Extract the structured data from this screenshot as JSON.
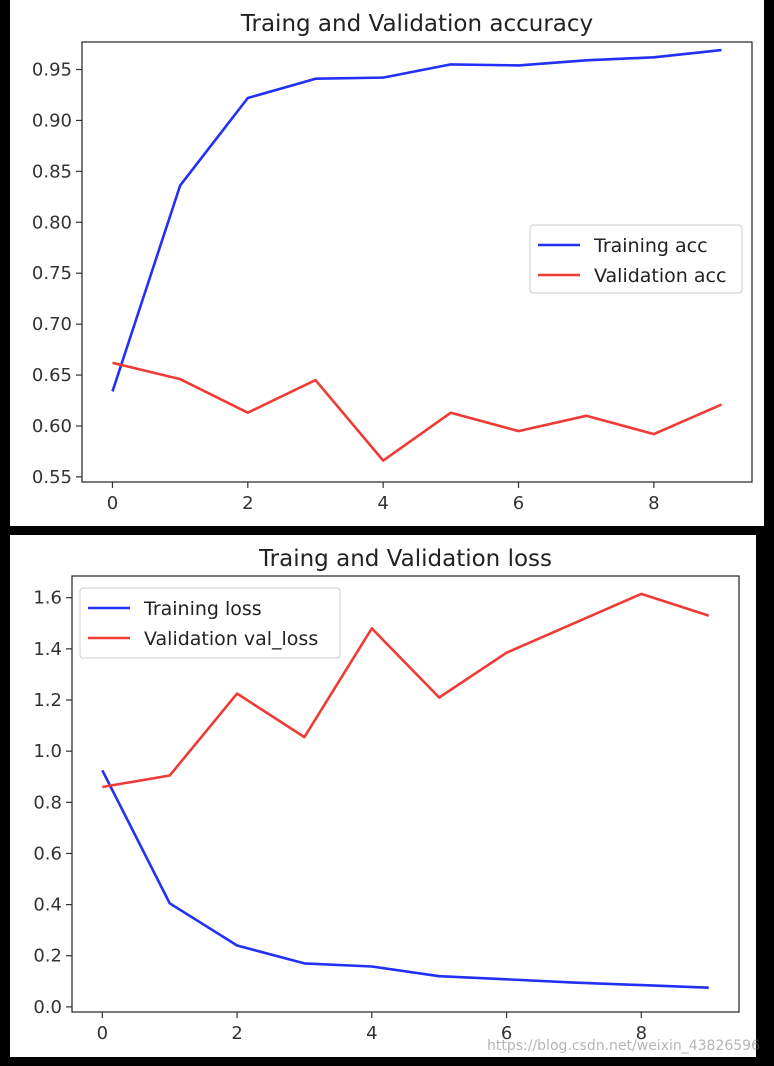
{
  "chart_data": [
    {
      "type": "line",
      "title": "Traing and Validation accuracy",
      "xlabel": "",
      "ylabel": "",
      "x": [
        0,
        1,
        2,
        3,
        4,
        5,
        6,
        7,
        8,
        9
      ],
      "xlim": [
        -0.45,
        9.45
      ],
      "ylim": [
        0.545,
        0.977
      ],
      "xticks": [
        "0",
        "2",
        "4",
        "6",
        "8"
      ],
      "yticks": [
        "0.55",
        "0.60",
        "0.65",
        "0.70",
        "0.75",
        "0.80",
        "0.85",
        "0.90",
        "0.95"
      ],
      "legend_position": "center-right",
      "grid": false,
      "series": [
        {
          "name": "Training acc",
          "color": "#2330f5",
          "values": [
            0.634,
            0.836,
            0.922,
            0.941,
            0.942,
            0.955,
            0.954,
            0.959,
            0.962,
            0.969
          ]
        },
        {
          "name": "Validation acc",
          "color": "#ef3b36",
          "values": [
            0.662,
            0.646,
            0.613,
            0.645,
            0.566,
            0.613,
            0.595,
            0.61,
            0.592,
            0.621
          ]
        }
      ]
    },
    {
      "type": "line",
      "title": "Traing and Validation loss",
      "xlabel": "",
      "ylabel": "",
      "x": [
        0,
        1,
        2,
        3,
        4,
        5,
        6,
        7,
        8,
        9
      ],
      "xlim": [
        -0.45,
        9.45
      ],
      "ylim": [
        -0.02,
        1.685
      ],
      "xticks": [
        "0",
        "2",
        "4",
        "6",
        "8"
      ],
      "yticks": [
        "0.0",
        "0.2",
        "0.4",
        "0.6",
        "0.8",
        "1.0",
        "1.2",
        "1.4",
        "1.6"
      ],
      "legend_position": "upper-left",
      "grid": false,
      "series": [
        {
          "name": "Training loss",
          "color": "#2330f5",
          "values": [
            0.925,
            0.405,
            0.24,
            0.17,
            0.158,
            0.12,
            0.108,
            0.095,
            0.085,
            0.075
          ]
        },
        {
          "name": "Validation val_loss",
          "color": "#ef3b36",
          "values": [
            0.86,
            0.905,
            1.225,
            1.055,
            1.48,
            1.21,
            1.385,
            1.5,
            1.615,
            1.53
          ]
        }
      ]
    }
  ],
  "watermark": "https://blog.csdn.net/weixin_43826596"
}
